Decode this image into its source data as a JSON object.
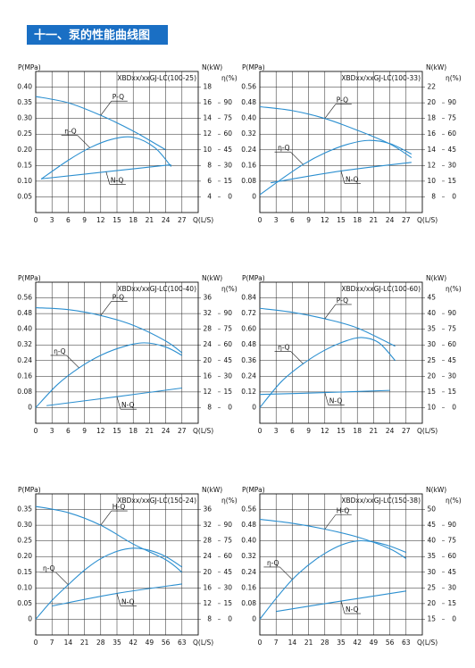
{
  "header": {
    "title": "十一、泵的性能曲线图"
  },
  "chart_data": [
    {
      "type": "line",
      "title": "XBDxx/xxGJ-LC(100-25)",
      "y_label": "P(MPa)",
      "y2_label": "N(kW)",
      "y3_label": "η(%)",
      "x_label": "Q(L/S)",
      "xlim": [
        0,
        30
      ],
      "xticks": [
        0,
        3,
        6,
        9,
        12,
        15,
        18,
        21,
        24,
        27
      ],
      "ylim": [
        0,
        0.45
      ],
      "yticks": [
        0.05,
        {
          "value": 0.1,
          "label": "0.10"
        },
        0.15,
        {
          "value": 0.2,
          "label": "0.20"
        },
        0.25,
        {
          "value": 0.3,
          "label": "0.30"
        },
        0.35,
        {
          "value": 0.4,
          "label": "0.40"
        }
      ],
      "y2lim": [
        2,
        20
      ],
      "y2ticks": [
        4,
        6,
        8,
        10,
        12,
        14,
        16,
        18
      ],
      "y3lim": [
        -15,
        120
      ],
      "y3ticks": [
        0,
        15,
        30,
        45,
        60,
        75,
        90
      ],
      "grid": true,
      "series": [
        {
          "name": "P-Q",
          "color": "#2b8fd0",
          "axis": "y",
          "x": [
            0,
            6,
            12,
            18,
            24
          ],
          "values": [
            0.37,
            0.35,
            0.31,
            0.26,
            0.2
          ]
        },
        {
          "name": "η-Q",
          "color": "#2b8fd0",
          "axis": "y3",
          "x": [
            1,
            6,
            10,
            14,
            18,
            22,
            25
          ],
          "values": [
            17,
            35,
            47,
            55,
            57,
            47,
            29
          ]
        },
        {
          "name": "N-Q",
          "color": "#2b8fd0",
          "axis": "y2",
          "x": [
            1,
            13,
            25
          ],
          "values": [
            6.3,
            7.2,
            8.1
          ]
        }
      ]
    },
    {
      "type": "line",
      "title": "XBDxx/xxGJ-LC(100-33)",
      "y_label": "P(MPa)",
      "y2_label": "N(kW)",
      "y3_label": "η(%)",
      "x_label": "Q(L/S)",
      "xlim": [
        0,
        30
      ],
      "xticks": [
        0,
        3,
        6,
        9,
        12,
        15,
        18,
        21,
        24,
        27
      ],
      "ylim": [
        -0.08,
        0.64
      ],
      "yticks": [
        0,
        0.08,
        0.16,
        0.24,
        0.32,
        {
          "value": 0.4,
          "label": "0.40"
        },
        0.48,
        0.56
      ],
      "y2lim": [
        6,
        24
      ],
      "y2ticks": [
        8,
        10,
        12,
        14,
        16,
        18,
        20,
        22
      ],
      "y3lim": [
        -15,
        120
      ],
      "y3ticks": [
        0,
        15,
        30,
        45,
        60,
        75,
        90
      ],
      "grid": true,
      "series": [
        {
          "name": "P-Q",
          "color": "#2b8fd0",
          "axis": "y",
          "x": [
            0,
            6,
            12,
            18,
            24,
            28
          ],
          "values": [
            0.46,
            0.44,
            0.4,
            0.34,
            0.27,
            0.2
          ]
        },
        {
          "name": "η-Q",
          "color": "#2b8fd0",
          "axis": "y3",
          "x": [
            0,
            4,
            8,
            12,
            16,
            20,
            24,
            28
          ],
          "values": [
            2,
            17,
            31,
            42,
            50,
            54,
            51,
            41
          ]
        },
        {
          "name": "N-Q",
          "color": "#2b8fd0",
          "axis": "y2",
          "x": [
            2,
            15,
            28
          ],
          "values": [
            9.8,
            11.3,
            12.4
          ]
        }
      ]
    },
    {
      "type": "line",
      "title": "XBDxx/xxGJ-LC(100-40)",
      "y_label": "P(MPa)",
      "y2_label": "N(kW)",
      "y3_label": "η(%)",
      "x_label": "Q(L/S)",
      "xlim": [
        0,
        30
      ],
      "xticks": [
        0,
        3,
        6,
        9,
        12,
        15,
        18,
        21,
        24,
        27
      ],
      "ylim": [
        -0.08,
        0.64
      ],
      "yticks": [
        0,
        0.08,
        0.16,
        0.24,
        0.32,
        {
          "value": 0.4,
          "label": "0.40"
        },
        0.48,
        0.56
      ],
      "y2lim": [
        4,
        40
      ],
      "y2ticks": [
        8,
        12,
        16,
        20,
        24,
        28,
        32,
        36
      ],
      "y3lim": [
        -15,
        120
      ],
      "y3ticks": [
        0,
        15,
        30,
        45,
        60,
        75,
        90
      ],
      "grid": true,
      "series": [
        {
          "name": "P-Q",
          "color": "#2b8fd0",
          "axis": "y",
          "x": [
            0,
            6,
            12,
            18,
            24,
            27
          ],
          "values": [
            0.51,
            0.5,
            0.47,
            0.42,
            0.34,
            0.28
          ]
        },
        {
          "name": "η-Q",
          "color": "#2b8fd0",
          "axis": "y3",
          "x": [
            0,
            4,
            8,
            12,
            16,
            20,
            24,
            27
          ],
          "values": [
            0,
            22,
            38,
            50,
            58,
            62,
            58,
            50
          ]
        },
        {
          "name": "N-Q",
          "color": "#2b8fd0",
          "axis": "y2",
          "x": [
            2,
            15,
            27
          ],
          "values": [
            8.5,
            10.8,
            13
          ]
        }
      ]
    },
    {
      "type": "line",
      "title": "XBDxx/xxGJ-LC(100-60)",
      "y_label": "P(MPa)",
      "y2_label": "N(kW)",
      "y3_label": "η(%)",
      "x_label": "Q(L/S)",
      "xlim": [
        0,
        30
      ],
      "xticks": [
        0,
        3,
        6,
        9,
        12,
        15,
        18,
        21,
        24,
        27
      ],
      "ylim": [
        -0.12,
        0.96
      ],
      "yticks": [
        0,
        0.12,
        0.24,
        0.36,
        0.48,
        {
          "value": 0.6,
          "label": "0.60"
        },
        0.72,
        0.84
      ],
      "y2lim": [
        5,
        50
      ],
      "y2ticks": [
        10,
        15,
        20,
        25,
        30,
        35,
        40,
        45
      ],
      "y3lim": [
        -15,
        120
      ],
      "y3ticks": [
        0,
        15,
        30,
        45,
        60,
        75,
        90
      ],
      "grid": true,
      "series": [
        {
          "name": "P-Q",
          "color": "#2b8fd0",
          "axis": "y",
          "x": [
            0,
            6,
            12,
            18,
            25
          ],
          "values": [
            0.76,
            0.73,
            0.68,
            0.61,
            0.47
          ]
        },
        {
          "name": "η-Q",
          "color": "#2b8fd0",
          "axis": "y3",
          "x": [
            0,
            4,
            8,
            12,
            16,
            19,
            22,
            25
          ],
          "values": [
            0,
            25,
            42,
            55,
            64,
            67,
            62,
            45
          ]
        },
        {
          "name": "N-Q",
          "color": "#2b8fd0",
          "axis": "y2",
          "x": [
            0,
            12,
            24
          ],
          "values": [
            14.2,
            14.8,
            15.5
          ]
        }
      ]
    },
    {
      "type": "line",
      "title": "XBDxx/xxGJ-LC(150-24)",
      "y_label": "P(MPa)",
      "y2_label": "N(kW)",
      "y3_label": "η(%)",
      "x_label": "Q(L/S)",
      "xlim": [
        0,
        70
      ],
      "xticks": [
        0,
        7,
        14,
        21,
        28,
        35,
        42,
        49,
        56,
        63
      ],
      "ylim": [
        -0.05,
        0.4
      ],
      "yticks": [
        0,
        0.05,
        {
          "value": 0.1,
          "label": "0.10"
        },
        0.15,
        {
          "value": 0.2,
          "label": "0.20"
        },
        0.25,
        {
          "value": 0.3,
          "label": "0.30"
        },
        0.35
      ],
      "y2lim": [
        4,
        40
      ],
      "y2ticks": [
        8,
        12,
        16,
        20,
        24,
        28,
        32,
        36
      ],
      "y3lim": [
        -15,
        120
      ],
      "y3ticks": [
        0,
        15,
        30,
        45,
        60,
        75,
        90
      ],
      "grid": true,
      "series": [
        {
          "name": "H-Q",
          "color": "#2b8fd0",
          "axis": "y",
          "x": [
            0,
            14,
            28,
            42,
            56,
            63
          ],
          "values": [
            0.36,
            0.34,
            0.3,
            0.24,
            0.19,
            0.15
          ]
        },
        {
          "name": "η-Q",
          "color": "#2b8fd0",
          "axis": "y3",
          "x": [
            0,
            7,
            14,
            21,
            28,
            35,
            42,
            49,
            56,
            63
          ],
          "values": [
            0,
            18,
            33,
            47,
            58,
            65,
            68,
            66,
            60,
            50
          ]
        },
        {
          "name": "N-Q",
          "color": "#2b8fd0",
          "axis": "y2",
          "x": [
            7,
            35,
            63
          ],
          "values": [
            11.4,
            14.6,
            17
          ]
        }
      ]
    },
    {
      "type": "line",
      "title": "XBDxx/xxGJ-LC(150-38)",
      "y_label": "P(MPa)",
      "y2_label": "N(kW)",
      "y3_label": "η(%)",
      "x_label": "Q(L/S)",
      "xlim": [
        0,
        70
      ],
      "xticks": [
        0,
        7,
        14,
        21,
        28,
        35,
        42,
        49,
        56,
        63
      ],
      "ylim": [
        -0.08,
        0.64
      ],
      "yticks": [
        0,
        0.08,
        0.16,
        0.24,
        0.32,
        {
          "value": 0.4,
          "label": "0.40"
        },
        0.48,
        0.56
      ],
      "y2lim": [
        10,
        55
      ],
      "y2ticks": [
        15,
        20,
        25,
        30,
        35,
        40,
        45,
        50
      ],
      "y3lim": [
        -15,
        120
      ],
      "y3ticks": [
        0,
        15,
        30,
        45,
        60,
        75,
        90
      ],
      "grid": true,
      "series": [
        {
          "name": "H-Q",
          "color": "#2b8fd0",
          "axis": "y",
          "x": [
            0,
            14,
            28,
            42,
            56,
            63
          ],
          "values": [
            0.51,
            0.49,
            0.46,
            0.42,
            0.36,
            0.31
          ]
        },
        {
          "name": "η-Q",
          "color": "#2b8fd0",
          "axis": "y3",
          "x": [
            0,
            7,
            14,
            21,
            28,
            35,
            42,
            49,
            56,
            63
          ],
          "values": [
            0,
            20,
            38,
            52,
            63,
            71,
            75,
            74,
            70,
            64
          ]
        },
        {
          "name": "N-Q",
          "color": "#2b8fd0",
          "axis": "y2",
          "x": [
            7,
            35,
            63
          ],
          "values": [
            17.5,
            20.8,
            24
          ]
        }
      ]
    }
  ]
}
